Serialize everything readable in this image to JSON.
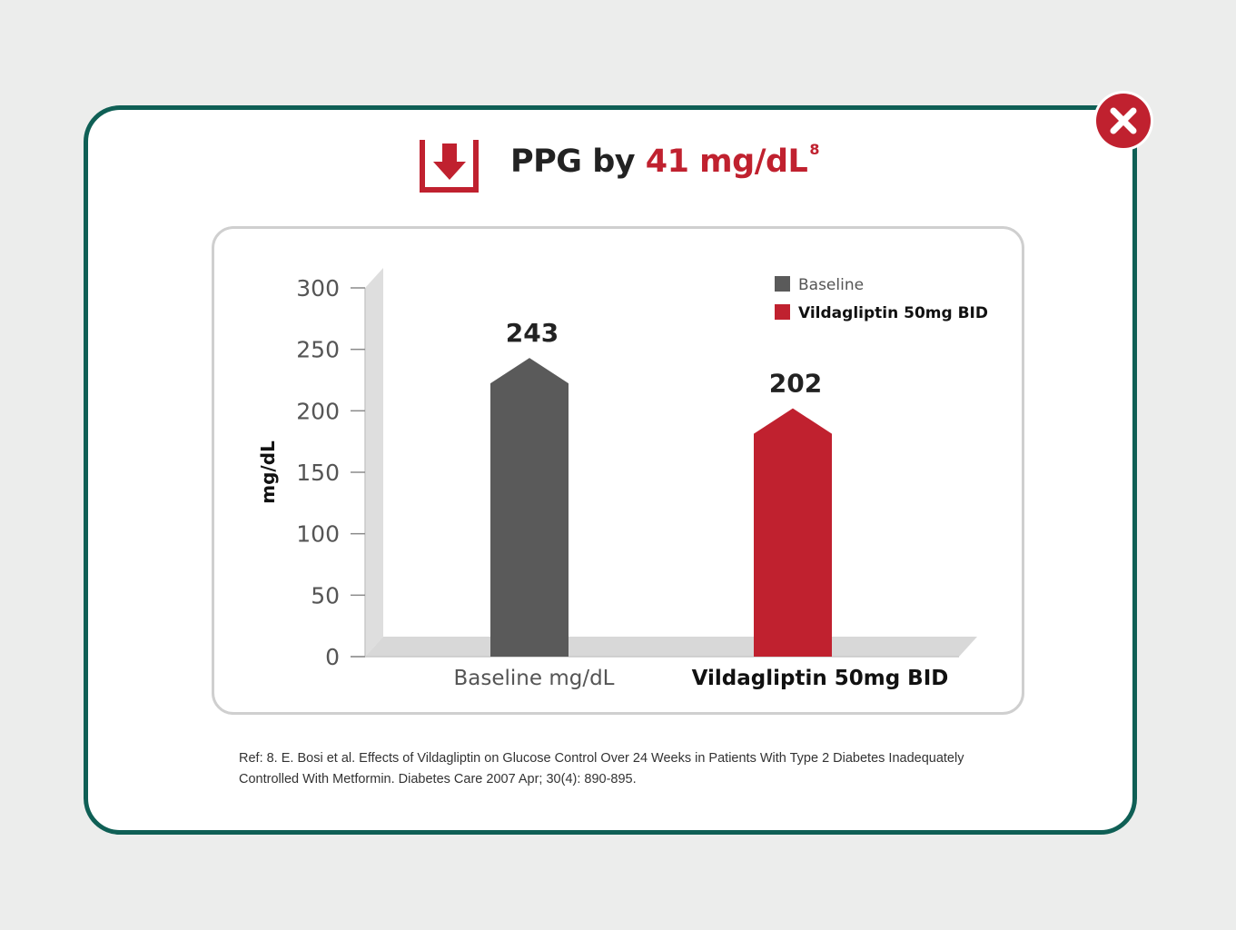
{
  "header": {
    "title_prefix": "PPG by ",
    "title_accent": "41 mg/dL",
    "title_superscript": "8",
    "icon": "down-arrow-box-icon"
  },
  "close_button": {
    "icon": "close-icon"
  },
  "reference": "Ref: 8. E. Bosi et al. Effects of Vildagliptin on Glucose Control Over 24 Weeks in Patients With Type 2 Diabetes Inadequately Controlled With Metformin. Diabetes Care 2007 Apr; 30(4): 890-895.",
  "colors": {
    "accent": "#c0212f",
    "baseline_bar": "#5a5a5a",
    "border": "#0f5f55"
  },
  "chart_data": {
    "type": "bar",
    "ylabel": "mg/dL",
    "ylim": [
      0,
      300
    ],
    "yticks": [
      0,
      50,
      100,
      150,
      200,
      250,
      300
    ],
    "categories": [
      "Baseline mg/dL",
      "Vildagliptin 50mg BID"
    ],
    "values": [
      243,
      202
    ],
    "data_labels": [
      "243",
      "202"
    ],
    "bar_colors": [
      "#5a5a5a",
      "#c0212f"
    ],
    "legend": {
      "position": "top-right",
      "entries": [
        {
          "name": "Baseline",
          "color": "#5a5a5a"
        },
        {
          "name": "Vildagliptin 50mg BID",
          "color": "#c0212f"
        }
      ]
    },
    "grid": false
  }
}
